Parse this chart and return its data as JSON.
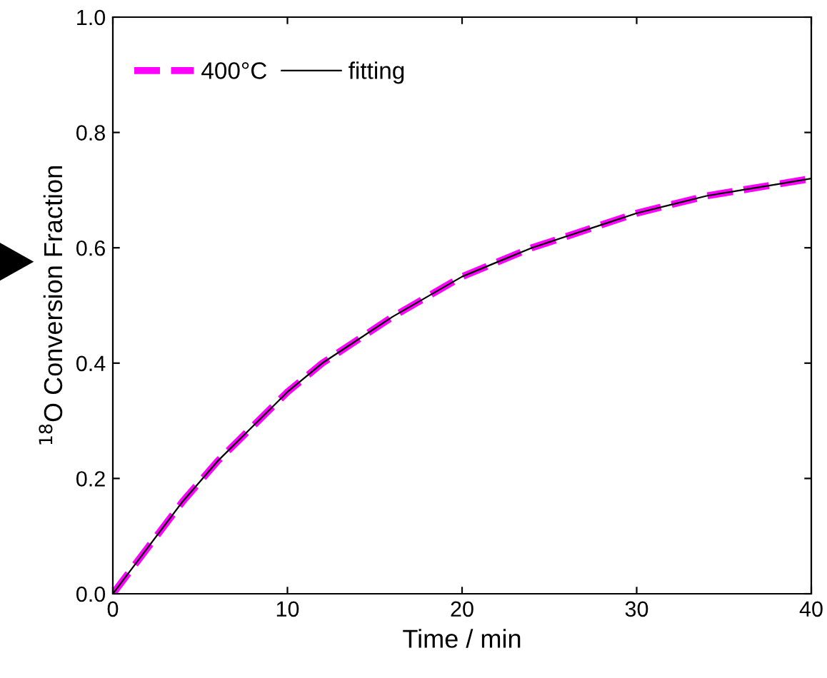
{
  "chart_data": {
    "type": "line",
    "xlabel": "Time / min",
    "ylabel": "$^{18}$O Conversion Fraction",
    "x": [
      0,
      2,
      4,
      6,
      8,
      10,
      12,
      14,
      16,
      18,
      20,
      22,
      24,
      26,
      28,
      30,
      32,
      34,
      36,
      38,
      40
    ],
    "series": [
      {
        "name": "400°C",
        "color": "#ff00ff",
        "line_style": "dashed",
        "values": [
          0,
          0.08,
          0.16,
          0.23,
          0.29,
          0.35,
          0.4,
          0.44,
          0.48,
          0.515,
          0.55,
          0.575,
          0.6,
          0.62,
          0.64,
          0.66,
          0.675,
          0.69,
          0.7,
          0.71,
          0.72
        ]
      },
      {
        "name": "fitting",
        "color": "#000000",
        "line_style": "solid",
        "values": [
          0,
          0.08,
          0.16,
          0.23,
          0.29,
          0.35,
          0.4,
          0.44,
          0.48,
          0.515,
          0.55,
          0.575,
          0.6,
          0.62,
          0.64,
          0.66,
          0.675,
          0.69,
          0.7,
          0.71,
          0.72
        ]
      }
    ],
    "xlim": [
      0,
      40
    ],
    "xticks": [
      0,
      10,
      20,
      30,
      40
    ],
    "ylim": [
      0,
      1.0
    ],
    "yticks": [
      {
        "value": 0,
        "label": "0.0"
      },
      0.2,
      0.4,
      0.6,
      0.8,
      {
        "value": 1.0,
        "label": "1.0"
      }
    ],
    "legend": "top left",
    "grid": false
  }
}
